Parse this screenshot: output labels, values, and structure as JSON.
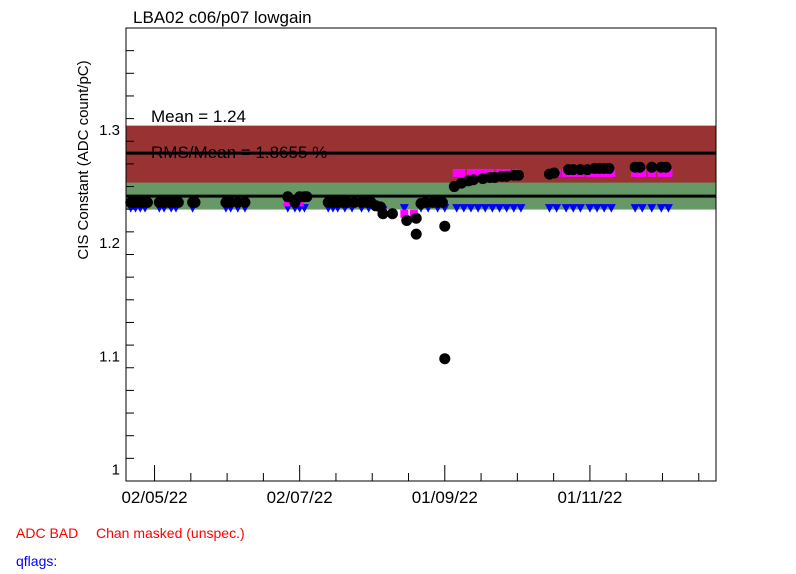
{
  "chart_data": {
    "type": "scatter",
    "title": "LBA02 c06/p07 lowgain",
    "ylabel": "CIS Constant (ADC count/pC)",
    "xlabel": "",
    "ylim": [
      0.99,
      1.39
    ],
    "xlim": [
      "2022-04-20",
      "2022-12-24"
    ],
    "x_tick_labels": [
      {
        "date": "2022-05-02",
        "label": "02/05/22"
      },
      {
        "date": "2022-07-02",
        "label": "02/07/22"
      },
      {
        "date": "2022-09-01",
        "label": "01/09/22"
      },
      {
        "date": "2022-11-01",
        "label": "01/11/22"
      }
    ],
    "y_ticks": [
      1.0,
      1.1,
      1.2,
      1.3
    ],
    "y_tick_labels": [
      "1",
      "1.1",
      "1.2",
      "1.3"
    ],
    "grid": false,
    "mean_text": "Mean = 1.24",
    "rms_text": "RMS/Mean = 1.8655 %",
    "bands": [
      {
        "name": "outer",
        "y0": 1.2322,
        "y1": 1.3038,
        "color": "#993333"
      },
      {
        "name": "inner",
        "y0": 1.2297,
        "y1": 1.2535,
        "color": "#669966"
      }
    ],
    "lines": [
      {
        "name": "upper",
        "y": 1.2795,
        "color": "#000000"
      },
      {
        "name": "mean",
        "y": 1.2415,
        "color": "#000000"
      }
    ],
    "series": [
      {
        "marker": "circle",
        "color": "#000000",
        "points": [
          [
            "2022-04-22",
            1.236
          ],
          [
            "2022-04-23",
            1.236
          ],
          [
            "2022-04-24",
            1.236
          ],
          [
            "2022-04-26",
            1.236
          ],
          [
            "2022-04-27",
            1.236
          ],
          [
            "2022-04-29",
            1.236
          ],
          [
            "2022-05-04",
            1.236
          ],
          [
            "2022-05-06",
            1.236
          ],
          [
            "2022-05-08",
            1.236
          ],
          [
            "2022-05-10",
            1.236
          ],
          [
            "2022-05-12",
            1.236
          ],
          [
            "2022-05-18",
            1.236
          ],
          [
            "2022-05-19",
            1.236
          ],
          [
            "2022-06-01",
            1.236
          ],
          [
            "2022-06-03",
            1.236
          ],
          [
            "2022-06-06",
            1.236
          ],
          [
            "2022-06-09",
            1.236
          ],
          [
            "2022-06-27",
            1.241
          ],
          [
            "2022-06-30",
            1.236
          ],
          [
            "2022-07-02",
            1.241
          ],
          [
            "2022-07-04",
            1.241
          ],
          [
            "2022-07-05",
            1.241
          ],
          [
            "2022-07-14",
            1.236
          ],
          [
            "2022-07-16",
            1.236
          ],
          [
            "2022-07-18",
            1.236
          ],
          [
            "2022-07-20",
            1.236
          ],
          [
            "2022-07-22",
            1.236
          ],
          [
            "2022-07-25",
            1.236
          ],
          [
            "2022-07-28",
            1.236
          ],
          [
            "2022-07-30",
            1.236
          ],
          [
            "2022-08-01",
            1.236
          ],
          [
            "2022-08-03",
            1.233
          ],
          [
            "2022-08-05",
            1.232
          ],
          [
            "2022-08-06",
            1.226
          ],
          [
            "2022-08-10",
            1.226
          ],
          [
            "2022-08-16",
            1.22
          ],
          [
            "2022-08-20",
            1.208
          ],
          [
            "2022-08-20",
            1.222
          ],
          [
            "2022-08-22",
            1.235
          ],
          [
            "2022-08-24",
            1.236
          ],
          [
            "2022-08-27",
            1.236
          ],
          [
            "2022-08-29",
            1.236
          ],
          [
            "2022-08-31",
            1.236
          ],
          [
            "2022-09-01",
            1.215
          ],
          [
            "2022-09-01",
            1.098
          ],
          [
            "2022-09-05",
            1.25
          ],
          [
            "2022-09-08",
            1.253
          ],
          [
            "2022-09-11",
            1.255
          ],
          [
            "2022-09-13",
            1.256
          ],
          [
            "2022-09-17",
            1.257
          ],
          [
            "2022-09-20",
            1.258
          ],
          [
            "2022-09-22",
            1.258
          ],
          [
            "2022-09-25",
            1.259
          ],
          [
            "2022-09-27",
            1.259
          ],
          [
            "2022-09-30",
            1.26
          ],
          [
            "2022-10-02",
            1.26
          ],
          [
            "2022-10-15",
            1.261
          ],
          [
            "2022-10-17",
            1.262
          ],
          [
            "2022-10-23",
            1.265
          ],
          [
            "2022-10-25",
            1.265
          ],
          [
            "2022-10-28",
            1.265
          ],
          [
            "2022-10-31",
            1.265
          ],
          [
            "2022-11-03",
            1.266
          ],
          [
            "2022-11-05",
            1.266
          ],
          [
            "2022-11-07",
            1.266
          ],
          [
            "2022-11-09",
            1.266
          ],
          [
            "2022-11-20",
            1.267
          ],
          [
            "2022-11-22",
            1.267
          ],
          [
            "2022-11-27",
            1.267
          ],
          [
            "2022-12-01",
            1.267
          ],
          [
            "2022-12-03",
            1.267
          ]
        ]
      },
      {
        "marker": "square",
        "color": "#ff00ff",
        "points": [
          [
            "2022-04-22",
            1.236
          ],
          [
            "2022-04-24",
            1.236
          ],
          [
            "2022-04-26",
            1.236
          ],
          [
            "2022-04-28",
            1.236
          ],
          [
            "2022-05-04",
            1.236
          ],
          [
            "2022-05-06",
            1.236
          ],
          [
            "2022-05-09",
            1.236
          ],
          [
            "2022-05-11",
            1.236
          ],
          [
            "2022-05-18",
            1.236
          ],
          [
            "2022-06-01",
            1.236
          ],
          [
            "2022-06-06",
            1.236
          ],
          [
            "2022-06-09",
            1.236
          ],
          [
            "2022-06-27",
            1.236
          ],
          [
            "2022-06-30",
            1.236
          ],
          [
            "2022-07-02",
            1.236
          ],
          [
            "2022-07-14",
            1.236
          ],
          [
            "2022-07-16",
            1.236
          ],
          [
            "2022-07-18",
            1.236
          ],
          [
            "2022-07-21",
            1.236
          ],
          [
            "2022-07-24",
            1.236
          ],
          [
            "2022-07-28",
            1.236
          ],
          [
            "2022-07-31",
            1.236
          ],
          [
            "2022-08-06",
            1.227
          ],
          [
            "2022-08-15",
            1.226
          ],
          [
            "2022-08-19",
            1.226
          ],
          [
            "2022-08-22",
            1.236
          ],
          [
            "2022-08-25",
            1.236
          ],
          [
            "2022-08-29",
            1.236
          ],
          [
            "2022-09-06",
            1.262
          ],
          [
            "2022-09-08",
            1.262
          ],
          [
            "2022-09-12",
            1.262
          ],
          [
            "2022-09-14",
            1.262
          ],
          [
            "2022-09-17",
            1.262
          ],
          [
            "2022-09-20",
            1.262
          ],
          [
            "2022-09-24",
            1.262
          ],
          [
            "2022-09-27",
            1.262
          ],
          [
            "2022-10-01",
            1.262
          ],
          [
            "2022-10-15",
            1.262
          ],
          [
            "2022-10-18",
            1.262
          ],
          [
            "2022-10-22",
            1.262
          ],
          [
            "2022-10-25",
            1.262
          ],
          [
            "2022-10-28",
            1.262
          ],
          [
            "2022-11-01",
            1.262
          ],
          [
            "2022-11-04",
            1.262
          ],
          [
            "2022-11-07",
            1.262
          ],
          [
            "2022-11-10",
            1.262
          ],
          [
            "2022-11-20",
            1.262
          ],
          [
            "2022-11-23",
            1.262
          ],
          [
            "2022-11-27",
            1.262
          ],
          [
            "2022-12-01",
            1.262
          ],
          [
            "2022-12-04",
            1.262
          ]
        ]
      },
      {
        "marker": "triangle-down",
        "color": "#0000ff",
        "points": [
          [
            "2022-04-22",
            1.231
          ],
          [
            "2022-04-24",
            1.231
          ],
          [
            "2022-04-26",
            1.231
          ],
          [
            "2022-04-28",
            1.231
          ],
          [
            "2022-05-04",
            1.231
          ],
          [
            "2022-05-06",
            1.231
          ],
          [
            "2022-05-09",
            1.231
          ],
          [
            "2022-05-11",
            1.231
          ],
          [
            "2022-05-18",
            1.231
          ],
          [
            "2022-06-01",
            1.231
          ],
          [
            "2022-06-03",
            1.231
          ],
          [
            "2022-06-06",
            1.231
          ],
          [
            "2022-06-09",
            1.231
          ],
          [
            "2022-06-27",
            1.231
          ],
          [
            "2022-06-30",
            1.231
          ],
          [
            "2022-07-02",
            1.231
          ],
          [
            "2022-07-04",
            1.231
          ],
          [
            "2022-07-14",
            1.231
          ],
          [
            "2022-07-16",
            1.231
          ],
          [
            "2022-07-18",
            1.231
          ],
          [
            "2022-07-21",
            1.231
          ],
          [
            "2022-07-24",
            1.231
          ],
          [
            "2022-07-28",
            1.231
          ],
          [
            "2022-07-31",
            1.231
          ],
          [
            "2022-08-06",
            1.229
          ],
          [
            "2022-08-15",
            1.231
          ],
          [
            "2022-08-22",
            1.231
          ],
          [
            "2022-08-25",
            1.231
          ],
          [
            "2022-08-29",
            1.231
          ],
          [
            "2022-09-01",
            1.231
          ],
          [
            "2022-09-06",
            1.231
          ],
          [
            "2022-09-09",
            1.231
          ],
          [
            "2022-09-12",
            1.231
          ],
          [
            "2022-09-15",
            1.231
          ],
          [
            "2022-09-18",
            1.231
          ],
          [
            "2022-09-21",
            1.231
          ],
          [
            "2022-09-24",
            1.231
          ],
          [
            "2022-09-27",
            1.231
          ],
          [
            "2022-09-30",
            1.231
          ],
          [
            "2022-10-03",
            1.231
          ],
          [
            "2022-10-15",
            1.231
          ],
          [
            "2022-10-18",
            1.231
          ],
          [
            "2022-10-22",
            1.231
          ],
          [
            "2022-10-25",
            1.231
          ],
          [
            "2022-10-28",
            1.231
          ],
          [
            "2022-11-01",
            1.231
          ],
          [
            "2022-11-04",
            1.231
          ],
          [
            "2022-11-07",
            1.231
          ],
          [
            "2022-11-10",
            1.231
          ],
          [
            "2022-11-20",
            1.231
          ],
          [
            "2022-11-23",
            1.231
          ],
          [
            "2022-11-27",
            1.231
          ],
          [
            "2022-12-01",
            1.231
          ],
          [
            "2022-12-04",
            1.231
          ]
        ]
      }
    ]
  },
  "footer": {
    "adc_bad": "ADC BAD",
    "chan_masked": "Chan masked (unspec.)",
    "qflags": "qflags:"
  }
}
